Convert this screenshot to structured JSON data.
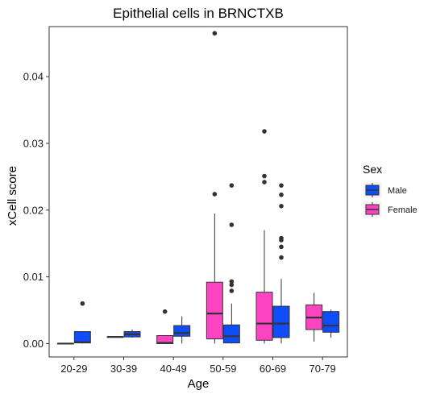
{
  "chart_data": {
    "type": "boxplot",
    "title": "Epithelial cells in BRNCTXB",
    "xlabel": "Age",
    "ylabel": "xCell score",
    "categories": [
      "20-29",
      "30-39",
      "40-49",
      "50-59",
      "60-69",
      "70-79"
    ],
    "ylim": [
      -0.002,
      0.0475
    ],
    "yticks": [
      0.0,
      0.01,
      0.02,
      0.03,
      0.04
    ],
    "ytick_labels": [
      "0.00",
      "0.01",
      "0.02",
      "0.03",
      "0.04"
    ],
    "grid": false,
    "legend": {
      "title": "Sex",
      "placement": "right"
    },
    "series": [
      {
        "name": "Male",
        "color": "#0e4df7",
        "boxes": [
          {
            "category": "20-29",
            "whisker_low": 0.0,
            "q1": 0.0001,
            "median": 0.0002,
            "q3": 0.0018,
            "whisker_high": 0.0018,
            "outliers": [
              0.006
            ]
          },
          {
            "category": "30-39",
            "whisker_low": 0.0009,
            "q1": 0.001,
            "median": 0.0014,
            "q3": 0.0018,
            "whisker_high": 0.0021,
            "outliers": []
          },
          {
            "category": "40-49",
            "whisker_low": 0.0,
            "q1": 0.0011,
            "median": 0.0016,
            "q3": 0.0027,
            "whisker_high": 0.0041,
            "outliers": []
          },
          {
            "category": "50-59",
            "whisker_low": 0.0,
            "q1": 0.0001,
            "median": 0.0011,
            "q3": 0.0028,
            "whisker_high": 0.006,
            "outliers": [
              0.0079,
              0.0088,
              0.0093,
              0.0178,
              0.0237
            ]
          },
          {
            "category": "60-69",
            "whisker_low": 0.0,
            "q1": 0.0009,
            "median": 0.003,
            "q3": 0.0056,
            "whisker_high": 0.0097,
            "outliers": [
              0.0129,
              0.0145,
              0.0155,
              0.0158,
              0.0206,
              0.0223,
              0.0237
            ]
          },
          {
            "category": "70-79",
            "whisker_low": 0.0009,
            "q1": 0.0017,
            "median": 0.0027,
            "q3": 0.0048,
            "whisker_high": 0.0051,
            "outliers": []
          }
        ]
      },
      {
        "name": "Female",
        "color": "#fc44c3",
        "boxes": [
          {
            "category": "20-29",
            "whisker_low": 0.0,
            "q1": 0.0,
            "median": 0.0,
            "q3": 0.0,
            "whisker_high": 0.0,
            "outliers": []
          },
          {
            "category": "30-39",
            "whisker_low": 0.001,
            "q1": 0.001,
            "median": 0.001,
            "q3": 0.001,
            "whisker_high": 0.001,
            "outliers": []
          },
          {
            "category": "40-49",
            "whisker_low": 0.0,
            "q1": 0.0,
            "median": 0.0001,
            "q3": 0.0012,
            "whisker_high": 0.0012,
            "outliers": [
              0.0048
            ]
          },
          {
            "category": "50-59",
            "whisker_low": 0.0,
            "q1": 0.0007,
            "median": 0.0045,
            "q3": 0.0092,
            "whisker_high": 0.0195,
            "outliers": [
              0.0224,
              0.0465
            ]
          },
          {
            "category": "60-69",
            "whisker_low": 0.0,
            "q1": 0.0005,
            "median": 0.003,
            "q3": 0.0077,
            "whisker_high": 0.017,
            "outliers": [
              0.0242,
              0.0251,
              0.0318
            ]
          },
          {
            "category": "70-79",
            "whisker_low": 0.0003,
            "q1": 0.0021,
            "median": 0.0039,
            "q3": 0.0058,
            "whisker_high": 0.0076,
            "outliers": []
          }
        ]
      }
    ]
  }
}
